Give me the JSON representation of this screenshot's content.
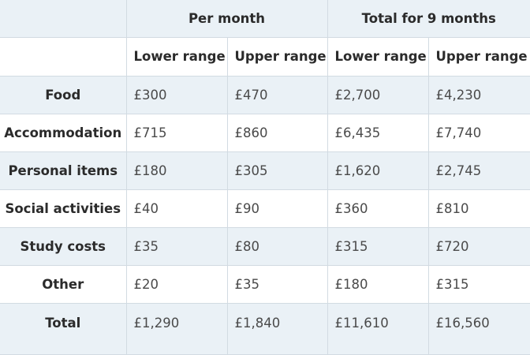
{
  "header": {
    "group_per_month": "Per month",
    "group_total": "Total for 9 months",
    "sub_headers": [
      "Lower range",
      "Upper range",
      "Lower range",
      "Upper range"
    ]
  },
  "rows": [
    {
      "label": "Food",
      "values": [
        "£300",
        "£470",
        "£2,700",
        "£4,230"
      ]
    },
    {
      "label": "Accommodation",
      "values": [
        "£715",
        "£860",
        "£6,435",
        "£7,740"
      ]
    },
    {
      "label": "Personal items",
      "values": [
        "£180",
        "£305",
        "£1,620",
        "£2,745"
      ]
    },
    {
      "label": "Social activities",
      "values": [
        "£40",
        "£90",
        "£360",
        "£810"
      ]
    },
    {
      "label": "Study costs",
      "values": [
        "£35",
        "£80",
        "£315",
        "£720"
      ]
    },
    {
      "label": "Other",
      "values": [
        "£20",
        "£35",
        "£180",
        "£315"
      ]
    },
    {
      "label": "Total",
      "values": [
        "£1,290",
        "£1,840",
        "£11,610",
        "£16,560"
      ]
    }
  ],
  "colors": {
    "shaded_row": "#eaf1f6",
    "border": "#d2dbe2"
  }
}
